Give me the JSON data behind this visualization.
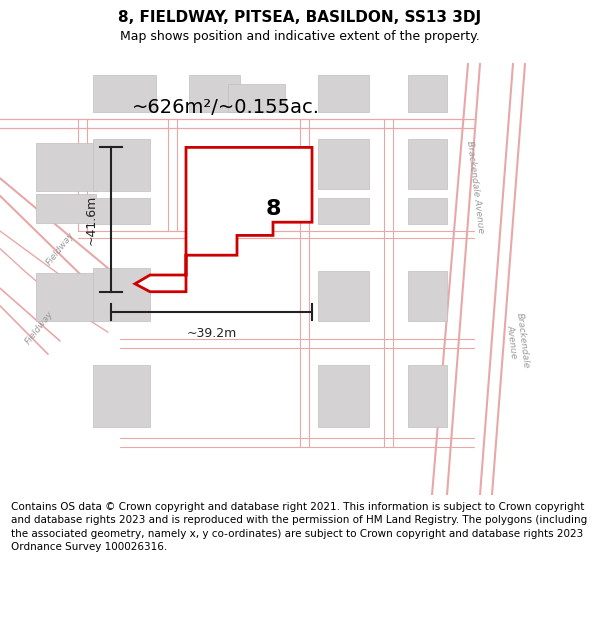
{
  "title": "8, FIELDWAY, PITSEA, BASILDON, SS13 3DJ",
  "subtitle": "Map shows position and indicative extent of the property.",
  "footer": "Contains OS data © Crown copyright and database right 2021. This information is subject to Crown copyright and database rights 2023 and is reproduced with the permission of HM Land Registry. The polygons (including the associated geometry, namely x, y co-ordinates) are subject to Crown copyright and database rights 2023 Ordnance Survey 100026316.",
  "area_label": "~626m²/~0.155ac.",
  "width_label": "~39.2m",
  "height_label": "~41.6m",
  "number_label": "8",
  "map_bg": "#f2f0ee",
  "road_color": "#e8a8a8",
  "road_lw": 1.0,
  "bld_fill": "#d4d2d2",
  "bld_edge": "#c0bebe",
  "red_color": "#cc0000",
  "label_color": "#999999",
  "dim_color": "#222222",
  "title_fs": 11,
  "subtitle_fs": 9,
  "area_fs": 14,
  "dim_fs": 9,
  "num_fs": 16,
  "footer_fs": 7.5,
  "road_label_fs": 6.5
}
